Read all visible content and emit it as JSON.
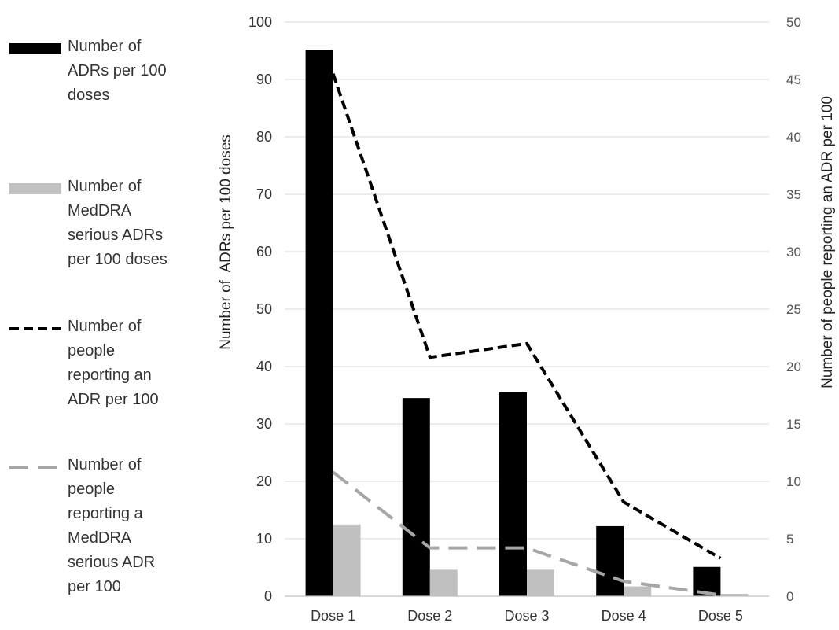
{
  "chart_data": {
    "type": "bar",
    "categories": [
      "Dose 1",
      "Dose 2",
      "Dose 3",
      "Dose 4",
      "Dose 5"
    ],
    "series": [
      {
        "name": "Number of ADRs per 100 doses",
        "type": "bar",
        "axis": "left",
        "color": "#000000",
        "values": [
          95.2,
          34.5,
          35.5,
          12.2,
          5.1
        ]
      },
      {
        "name": "Number of MedDRA serious ADRs per 100 doses",
        "type": "bar",
        "axis": "left",
        "color": "#c0c0c0",
        "values": [
          12.5,
          4.6,
          4.6,
          1.7,
          0.4
        ]
      },
      {
        "name": "Number of people reporting an ADR per 100",
        "type": "line",
        "style": "dashed",
        "axis": "right",
        "color": "#000000",
        "values": [
          45.5,
          20.8,
          22.0,
          8.2,
          3.3
        ]
      },
      {
        "name": "Number of people reporting a MedDRA serious ADR per 100",
        "type": "line",
        "style": "dashed",
        "axis": "right",
        "color": "#a6a6a6",
        "values": [
          10.8,
          4.2,
          4.2,
          1.3,
          0.1
        ]
      }
    ],
    "ylabel": "Number of  ADRs per 100 doses",
    "y2label": "Number of people reporting an ADR per 100",
    "ylim": [
      0,
      100
    ],
    "yticks": [
      0,
      10,
      20,
      30,
      40,
      50,
      60,
      70,
      80,
      90,
      100
    ],
    "y2lim": [
      0,
      50
    ],
    "y2ticks": [
      0,
      5,
      10,
      15,
      20,
      25,
      30,
      35,
      40,
      45,
      50
    ],
    "grid": true,
    "legend_position": "left"
  },
  "legend": [
    {
      "label_lines": [
        "Number of",
        "ADRs per 100",
        "doses"
      ],
      "kind": "bar",
      "color": "#000000"
    },
    {
      "label_lines": [
        "Number of",
        "MedDRA",
        "serious ADRs",
        "per 100 doses"
      ],
      "kind": "bar",
      "color": "#c0c0c0"
    },
    {
      "label_lines": [
        "Number of",
        "people",
        "reporting an",
        "ADR per 100"
      ],
      "kind": "line",
      "color": "#000000"
    },
    {
      "label_lines": [
        "Number of",
        "people",
        "reporting a",
        "MedDRA",
        "serious ADR",
        "per 100"
      ],
      "kind": "line",
      "color": "#a6a6a6"
    }
  ]
}
